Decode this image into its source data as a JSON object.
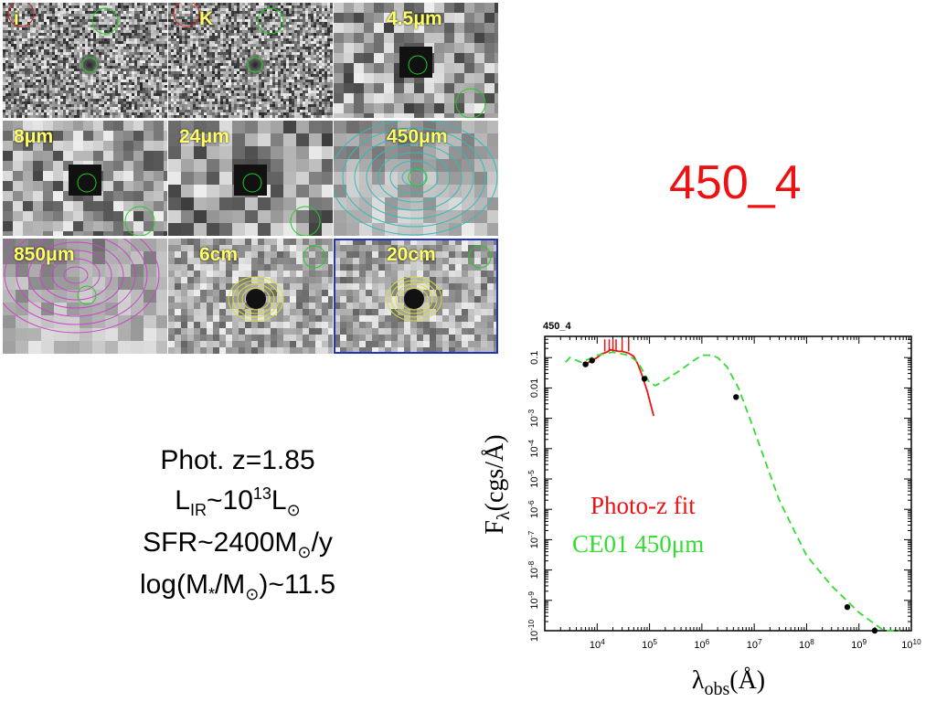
{
  "title": "450_4",
  "panels": [
    {
      "label": "i"
    },
    {
      "label": "K"
    },
    {
      "label": "4.5μm"
    },
    {
      "label": "8μm"
    },
    {
      "label": "24μm"
    },
    {
      "label": "450μm"
    },
    {
      "label": "850μm"
    },
    {
      "label": "6cm"
    },
    {
      "label": "20cm"
    }
  ],
  "source_tag": "450_4",
  "properties": {
    "line1": "Phot. z=1.85",
    "lir_prefix": "L",
    "lir_sub": "IR",
    "lir_mid": "~10",
    "lir_sup": "13",
    "lir_suffix": "L",
    "lir_sun": "⊙",
    "sfr_prefix": "SFR~2400M",
    "sfr_sun": "⊙",
    "sfr_suffix": "/y",
    "mass_prefix": "log(M",
    "mass_star": "*",
    "mass_mid": "/M",
    "mass_sun": "⊙",
    "mass_suffix": ")~11.5"
  },
  "chart_data": {
    "type": "line",
    "title": "450_4",
    "xlabel": "λobs(Å)",
    "ylabel": "Fλ(cgs/Å)",
    "xscale": "log",
    "yscale": "log",
    "xlim": [
      1000,
      10000000000
    ],
    "ylim": [
      1e-10,
      0.5
    ],
    "x_ticks": [
      "10^4",
      "10^5",
      "10^6",
      "10^7",
      "10^8",
      "10^9",
      "10^10"
    ],
    "y_ticks": [
      "10^-10",
      "10^-9",
      "10^-8",
      "10^-7",
      "10^-6",
      "10^-5",
      "10^-4",
      "10^-3",
      "0.01",
      "0.1"
    ],
    "legend": [
      "Photo-z fit",
      "CE01 450μm"
    ],
    "legend_placement": "center-left",
    "series": [
      {
        "name": "Photo-z fit",
        "color": "#ee1111",
        "style": "solid",
        "x": [
          6000,
          7000,
          8000,
          9000,
          10000,
          12000,
          15000,
          18000,
          22000,
          26000,
          30000,
          40000,
          50000,
          60000,
          70000,
          80000,
          90000,
          100000,
          120000
        ],
        "y": [
          0.06,
          0.07,
          0.08,
          0.09,
          0.1,
          0.13,
          0.15,
          0.18,
          0.17,
          0.16,
          0.16,
          0.14,
          0.11,
          0.06,
          0.03,
          0.015,
          0.008,
          0.004,
          0.0012
        ]
      },
      {
        "name": "CE01 450μm",
        "color": "#33dd33",
        "style": "dashed",
        "x": [
          2500,
          3000,
          5000,
          7000,
          10000,
          20000,
          40000,
          60000,
          80000,
          100000,
          130000,
          200000,
          400000,
          700000,
          1000000,
          1500000,
          2000000,
          3000000,
          5000000,
          10000000,
          30000000,
          100000000,
          300000000,
          1000000000,
          3000000000,
          6000000000
        ],
        "y": [
          0.07,
          0.1,
          0.07,
          0.09,
          0.12,
          0.15,
          0.12,
          0.07,
          0.03,
          0.015,
          0.012,
          0.018,
          0.04,
          0.08,
          0.12,
          0.12,
          0.1,
          0.05,
          0.01,
          0.0004,
          2e-06,
          3e-08,
          3e-09,
          4e-10,
          1e-10,
          4e-11
        ]
      }
    ],
    "points": [
      {
        "x": 6000,
        "y": 0.06
      },
      {
        "x": 8000,
        "y": 0.08
      },
      {
        "x": 80000,
        "y": 0.02
      },
      {
        "x": 4500000,
        "y": 0.005
      },
      {
        "x": 600000000,
        "y": 6e-10
      },
      {
        "x": 2000000000,
        "y": 1e-10
      }
    ]
  }
}
